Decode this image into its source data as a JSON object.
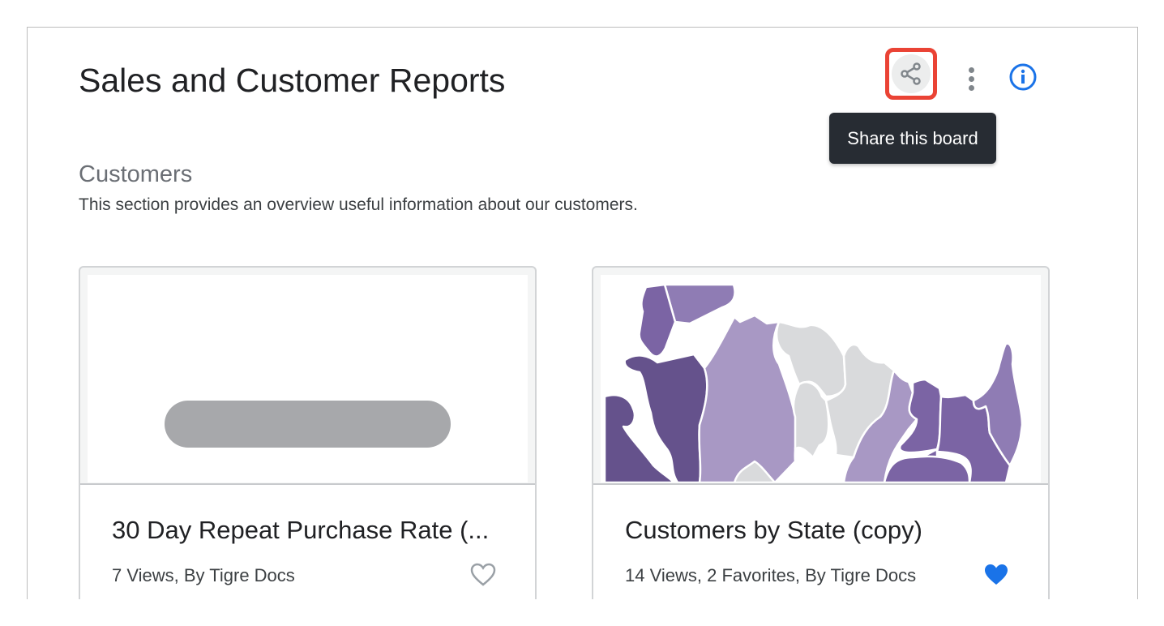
{
  "board": {
    "title": "Sales and Customer Reports"
  },
  "toolbar": {
    "share_icon": "share-icon",
    "more_icon": "more-vert-icon",
    "info_icon": "info-icon",
    "tooltip": "Share this board",
    "highlight_color": "#ea4335",
    "info_color": "#1a73e8"
  },
  "section": {
    "title": "Customers",
    "description": "This section provides an overview useful information about our customers."
  },
  "cards": [
    {
      "title": "30 Day Repeat Purchase Rate (...",
      "meta": "7 Views, By Tigre Docs",
      "favorite": false,
      "thumbnail": "placeholder-bar"
    },
    {
      "title": "Customers by State (copy)",
      "meta": "14 Views, 2 Favorites, By Tigre Docs",
      "favorite": true,
      "thumbnail": "choropleth-map"
    }
  ]
}
